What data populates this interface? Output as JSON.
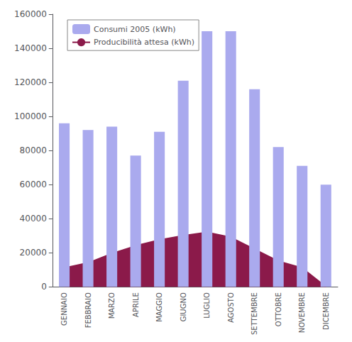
{
  "chart_data": {
    "type": "bar",
    "categories": [
      "GENNAIO",
      "FEBBRAIO",
      "MARZO",
      "APRILE",
      "MAGGIO",
      "GIUGNO",
      "LUGLIO",
      "AGOSTO",
      "SETTEMBRE",
      "OTTOBRE",
      "NOVEMBRE",
      "DICEMBRE"
    ],
    "series": [
      {
        "name": "Consumi 2005 (kWh)",
        "type": "bar",
        "color": "#aaaaee",
        "values": [
          96000,
          92000,
          94000,
          77000,
          91000,
          121000,
          150000,
          150000,
          116000,
          82000,
          71000,
          60000
        ]
      },
      {
        "name": "Producibilità attesa (kWh)",
        "type": "area",
        "color": "#8B1A4A",
        "values": [
          11000,
          14000,
          19500,
          24000,
          27500,
          30000,
          32000,
          29000,
          22000,
          15000,
          11000,
          0
        ]
      }
    ],
    "ylim": [
      0,
      160000
    ],
    "yticks": [
      0,
      20000,
      40000,
      60000,
      80000,
      100000,
      120000,
      140000,
      160000
    ],
    "grid": false,
    "legend": "upper left"
  }
}
